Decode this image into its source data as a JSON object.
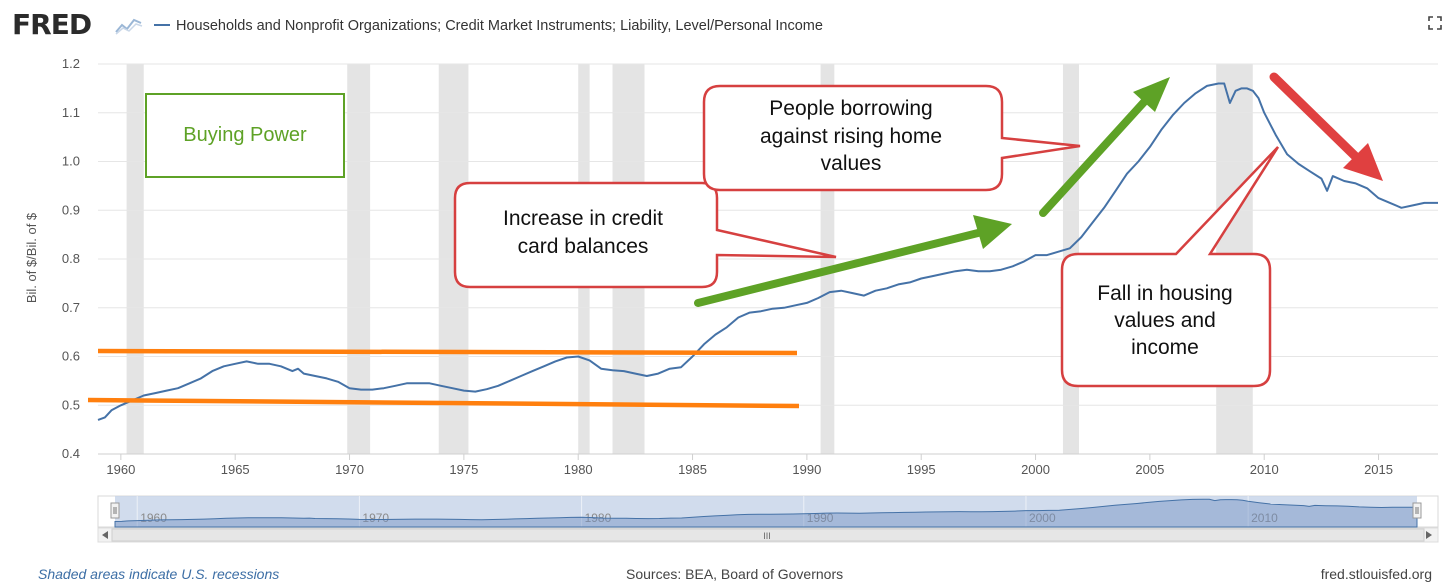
{
  "header": {
    "logo": "FRED",
    "title": "Households and Nonprofit Organizations; Credit Market Instruments; Liability, Level/Personal Income"
  },
  "footer": {
    "recessions_note": "Shaded areas indicate U.S. recessions",
    "sources": "Sources: BEA, Board of Governors",
    "site": "fred.stlouisfed.org"
  },
  "annotations": {
    "buying_power": "Buying Power",
    "credit_cards": [
      "Increase in credit",
      "card balances"
    ],
    "borrowing": [
      "People borrowing",
      "against rising home",
      "values"
    ],
    "fall": [
      "Fall in housing",
      "values and",
      "income"
    ]
  },
  "navigator": {
    "ticks": [
      "1960",
      "1970",
      "1980",
      "1990",
      "2000",
      "2010"
    ],
    "scroll_label": "III"
  },
  "colors": {
    "series": "#4572a7",
    "recession": "#e4e4e4",
    "orange": "#ff7f0e",
    "green": "#5ea226",
    "red": "#e04040"
  },
  "chart_data": {
    "type": "line",
    "title": "Households and Nonprofit Organizations; Credit Market Instruments; Liability, Level/Personal Income",
    "ylabel": "Bil. of $/Bil. of $",
    "xlabel": "",
    "xlim": [
      1959,
      2017.6
    ],
    "ylim": [
      0.4,
      1.2
    ],
    "yticks": [
      "0.4",
      "0.5",
      "0.6",
      "0.7",
      "0.8",
      "0.9",
      "1.0",
      "1.1",
      "1.2"
    ],
    "xticks": [
      "1960",
      "1965",
      "1970",
      "1975",
      "1980",
      "1985",
      "1990",
      "1995",
      "2000",
      "2005",
      "2010",
      "2015"
    ],
    "grid": true,
    "recessions": [
      [
        1960.25,
        1961.0
      ],
      [
        1969.9,
        1970.9
      ],
      [
        1973.9,
        1975.2
      ],
      [
        1980.0,
        1980.5
      ],
      [
        1981.5,
        1982.9
      ],
      [
        1990.6,
        1991.2
      ],
      [
        2001.2,
        2001.9
      ],
      [
        2007.9,
        2009.5
      ]
    ],
    "series": [
      {
        "name": "Households and Nonprofit Organizations; Credit Market Instruments; Liability, Level/Personal Income",
        "x": [
          1959.0,
          1959.3,
          1959.6,
          1960.0,
          1960.5,
          1961.0,
          1961.5,
          1962.0,
          1962.5,
          1963.0,
          1963.5,
          1964.0,
          1964.5,
          1965.0,
          1965.5,
          1966.0,
          1966.5,
          1967.0,
          1967.5,
          1967.75,
          1968.0,
          1968.5,
          1969.0,
          1969.5,
          1970.0,
          1970.5,
          1971.0,
          1971.5,
          1972.0,
          1972.5,
          1973.0,
          1973.5,
          1974.0,
          1974.5,
          1975.0,
          1975.5,
          1976.0,
          1976.5,
          1977.0,
          1977.5,
          1978.0,
          1978.5,
          1979.0,
          1979.5,
          1980.0,
          1980.5,
          1981.0,
          1981.5,
          1982.0,
          1982.5,
          1983.0,
          1983.5,
          1984.0,
          1984.5,
          1985.0,
          1985.5,
          1986.0,
          1986.5,
          1987.0,
          1987.5,
          1988.0,
          1988.5,
          1989.0,
          1989.5,
          1990.0,
          1990.5,
          1991.0,
          1991.5,
          1992.0,
          1992.5,
          1993.0,
          1993.5,
          1994.0,
          1994.5,
          1995.0,
          1995.5,
          1996.0,
          1996.5,
          1997.0,
          1997.5,
          1998.0,
          1998.5,
          1999.0,
          1999.5,
          2000.0,
          2000.5,
          2001.0,
          2001.5,
          2002.0,
          2002.5,
          2003.0,
          2003.5,
          2004.0,
          2004.5,
          2005.0,
          2005.5,
          2006.0,
          2006.5,
          2007.0,
          2007.5,
          2008.0,
          2008.25,
          2008.5,
          2008.75,
          2009.0,
          2009.25,
          2009.5,
          2009.75,
          2010.0,
          2010.5,
          2011.0,
          2011.5,
          2012.0,
          2012.5,
          2012.75,
          2013.0,
          2013.5,
          2014.0,
          2014.5,
          2015.0,
          2015.5,
          2016.0,
          2016.5,
          2017.0,
          2017.6
        ],
        "values": [
          0.47,
          0.475,
          0.49,
          0.5,
          0.51,
          0.52,
          0.525,
          0.53,
          0.535,
          0.545,
          0.555,
          0.57,
          0.58,
          0.585,
          0.59,
          0.585,
          0.585,
          0.58,
          0.57,
          0.575,
          0.565,
          0.56,
          0.555,
          0.548,
          0.535,
          0.532,
          0.532,
          0.535,
          0.54,
          0.545,
          0.545,
          0.545,
          0.54,
          0.535,
          0.53,
          0.528,
          0.533,
          0.54,
          0.55,
          0.56,
          0.57,
          0.58,
          0.59,
          0.598,
          0.6,
          0.592,
          0.575,
          0.572,
          0.57,
          0.565,
          0.56,
          0.565,
          0.575,
          0.578,
          0.6,
          0.625,
          0.645,
          0.66,
          0.68,
          0.69,
          0.693,
          0.698,
          0.7,
          0.705,
          0.71,
          0.72,
          0.732,
          0.735,
          0.73,
          0.725,
          0.735,
          0.74,
          0.748,
          0.752,
          0.76,
          0.765,
          0.77,
          0.775,
          0.778,
          0.775,
          0.775,
          0.778,
          0.785,
          0.795,
          0.808,
          0.808,
          0.815,
          0.822,
          0.845,
          0.875,
          0.905,
          0.94,
          0.975,
          1.0,
          1.03,
          1.065,
          1.095,
          1.12,
          1.14,
          1.155,
          1.16,
          1.16,
          1.12,
          1.145,
          1.15,
          1.15,
          1.145,
          1.13,
          1.1,
          1.055,
          1.015,
          0.995,
          0.98,
          0.965,
          0.94,
          0.97,
          0.96,
          0.955,
          0.945,
          0.925,
          0.915,
          0.905,
          0.91,
          0.915,
          0.915
        ]
      }
    ]
  }
}
